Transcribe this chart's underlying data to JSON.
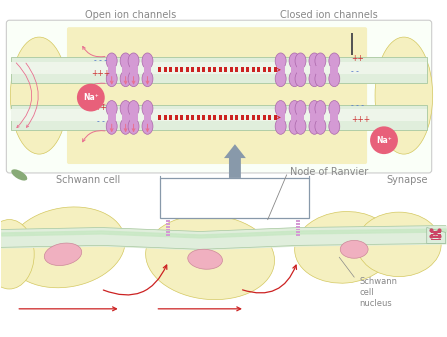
{
  "bg_color": "#ffffff",
  "top_panel_bg": "#fafff8",
  "top_panel_border": "#cccccc",
  "myelin_color": "#f5f0c0",
  "myelin_border": "#d4c860",
  "axon_color": "#e0eedc",
  "axon_border": "#a8c8a0",
  "axon_inner_color": "#d8ecd4",
  "channel_color": "#d49ad4",
  "channel_border": "#aa66aa",
  "na_color": "#e8607a",
  "plus_color": "#cc3333",
  "minus_color": "#5577cc",
  "arrow_red": "#cc2222",
  "arrow_pink": "#e87090",
  "gray_blue": "#8899aa",
  "label_gray": "#888888",
  "nucleus_color": "#f0b0c0",
  "nucleus_border": "#cc8899",
  "schwann_color": "#f5f0c0",
  "schwann_border": "#d4c860",
  "label_open": "Open ion channels",
  "label_closed": "Closed ion channels",
  "label_schwann": "Schwann cell",
  "label_node": "Node of Ranvier",
  "label_synapse": "Synapse",
  "label_nucleus": "Schwann\ncell\nnucleus"
}
